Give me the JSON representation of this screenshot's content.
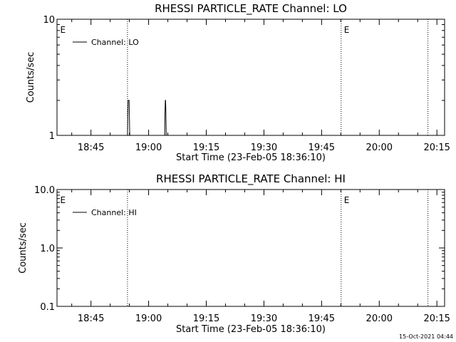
{
  "footer": {
    "timestamp": "15-Oct-2021 04:44"
  },
  "chart_data": [
    {
      "type": "line",
      "title": "RHESSI PARTICLE_RATE Channel: LO",
      "xlabel": "Start Time (23-Feb-05 18:36:10)",
      "ylabel": "Counts/sec",
      "x_scale": "time",
      "x_range": [
        "18:36:10",
        "20:17:00"
      ],
      "x_ticks": [
        "18:45",
        "19:00",
        "19:15",
        "19:30",
        "19:45",
        "20:00",
        "20:15"
      ],
      "y_scale": "log",
      "ylim": [
        1,
        10
      ],
      "y_ticks": [
        "1",
        "10"
      ],
      "legend": {
        "entries": [
          "Channel: LO"
        ],
        "placement": "top-left"
      },
      "markers": [
        {
          "time": "18:36:15",
          "label": "E"
        },
        {
          "time": "19:50:05",
          "label": "E"
        }
      ],
      "dotted_lines": [
        "18:54:30",
        "19:50:05",
        "20:12:40"
      ],
      "series": [
        {
          "name": "Channel: LO",
          "x": [
            "18:54:30",
            "18:54:35",
            "18:54:40",
            "18:54:45",
            "18:54:50",
            "18:54:55",
            "18:55:00",
            "18:55:05",
            "18:55:10",
            "18:55:15",
            "18:55:20",
            "19:04:10",
            "19:04:15",
            "19:04:20",
            "19:04:25",
            "19:04:30",
            "19:04:35",
            "19:04:40"
          ],
          "y": [
            1,
            1.5,
            2,
            2,
            2,
            2,
            1.5,
            1,
            1,
            1,
            1,
            1,
            1.5,
            2,
            2,
            1.5,
            1,
            1
          ]
        }
      ]
    },
    {
      "type": "line",
      "title": "RHESSI PARTICLE_RATE Channel: HI",
      "xlabel": "Start Time (23-Feb-05 18:36:10)",
      "ylabel": "Counts/sec",
      "x_scale": "time",
      "x_range": [
        "18:36:10",
        "20:17:00"
      ],
      "x_ticks": [
        "18:45",
        "19:00",
        "19:15",
        "19:30",
        "19:45",
        "20:00",
        "20:15"
      ],
      "y_scale": "log",
      "ylim": [
        0.1,
        10
      ],
      "y_ticks": [
        "0.1",
        "1.0",
        "10.0"
      ],
      "legend": {
        "entries": [
          "Channel: HI"
        ],
        "placement": "top-left"
      },
      "markers": [
        {
          "time": "18:36:15",
          "label": "E"
        },
        {
          "time": "19:50:05",
          "label": "E"
        }
      ],
      "dotted_lines": [
        "18:54:30",
        "19:50:05",
        "20:12:40"
      ],
      "series": [
        {
          "name": "Channel: HI",
          "x": [],
          "y": []
        }
      ]
    }
  ]
}
